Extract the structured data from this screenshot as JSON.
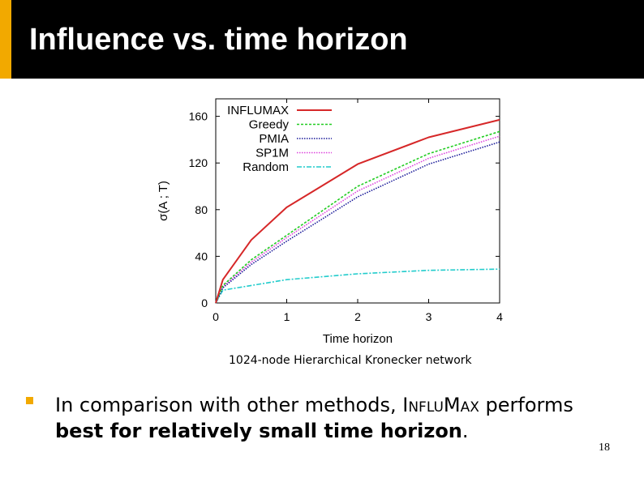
{
  "slide": {
    "title": "Influence vs. time horizon",
    "caption": "1024-node Hierarchical Kronecker network",
    "bullet": {
      "prefix": "In comparison with other methods, ",
      "method": "InfluMax",
      "middle": " performs ",
      "bold": "best for relatively small time horizon",
      "suffix": "."
    },
    "page_number": "18",
    "accent_color": "#f2a900"
  },
  "chart_data": {
    "type": "line",
    "xlabel": "Time horizon",
    "ylabel": "σ(A ; T)",
    "xlim": [
      0,
      4
    ],
    "ylim": [
      0,
      175
    ],
    "xticks": [
      "0",
      "1",
      "2",
      "3",
      "4"
    ],
    "yticks": [
      "0",
      "40",
      "80",
      "120",
      "160"
    ],
    "legend_position": "top-left",
    "x": [
      0,
      0.1,
      0.5,
      1,
      2,
      3,
      4
    ],
    "series": [
      {
        "name": "INFLUMAX",
        "color": "#d62728",
        "dash": "",
        "width": 2,
        "values": [
          0,
          20,
          54,
          82,
          119,
          142,
          157
        ]
      },
      {
        "name": "Greedy",
        "color": "#22cc22",
        "dash": "3,2",
        "width": 1.6,
        "values": [
          0,
          15,
          37,
          58,
          100,
          128,
          147
        ]
      },
      {
        "name": "PMIA",
        "color": "#1a1a99",
        "dash": "1.5,1.5",
        "width": 1.6,
        "values": [
          0,
          13,
          33,
          53,
          91,
          119,
          138
        ]
      },
      {
        "name": "SP1M",
        "color": "#dd44dd",
        "dash": "1.5,1.5",
        "width": 1.6,
        "values": [
          0,
          14,
          35,
          56,
          96,
          124,
          143
        ]
      },
      {
        "name": "Random",
        "color": "#22cccc",
        "dash": "6,2,2,2",
        "width": 1.6,
        "values": [
          0,
          11,
          15,
          20,
          25,
          28,
          29
        ]
      }
    ]
  }
}
